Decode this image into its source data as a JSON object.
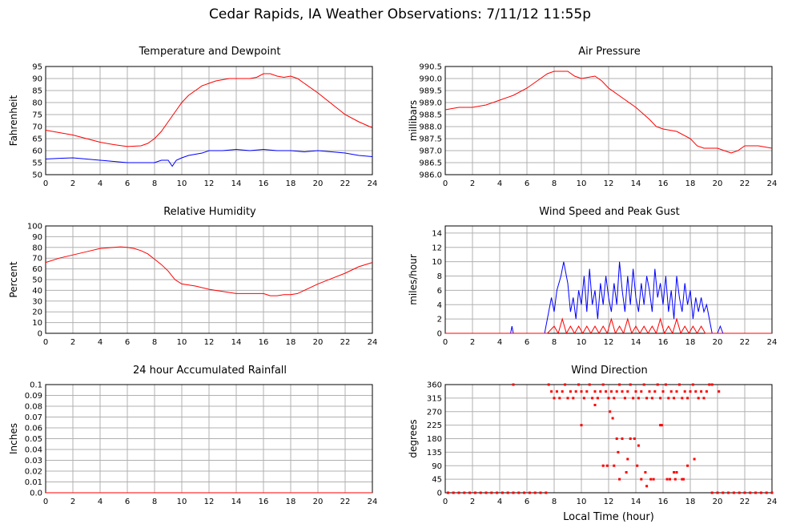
{
  "title": "Cedar Rapids, IA Weather Observations: 7/11/12 11:55p",
  "xaxis_label": "Local Time (hour)",
  "colors": {
    "red": "#ff0000",
    "blue": "#0000ff",
    "grid": "#b0b0b0"
  },
  "chart_data": [
    {
      "id": "temp",
      "type": "line",
      "title": "Temperature and Dewpoint",
      "ylabel": "Fahrenheit",
      "xlim": [
        0,
        24
      ],
      "ylim": [
        50,
        95
      ],
      "yticks": [
        50,
        55,
        60,
        65,
        70,
        75,
        80,
        85,
        90,
        95
      ],
      "xticks": [
        0,
        2,
        4,
        6,
        8,
        10,
        12,
        14,
        16,
        18,
        20,
        22,
        24
      ],
      "grid": true,
      "series": [
        {
          "color": "red",
          "x": [
            0,
            1,
            2,
            3,
            4,
            5,
            6,
            7,
            7.5,
            8,
            8.5,
            9,
            9.5,
            10,
            10.5,
            11,
            11.5,
            12,
            12.5,
            13,
            13.5,
            14,
            14.5,
            15,
            15.5,
            16,
            16.5,
            17,
            17.5,
            18,
            18.5,
            19,
            20,
            21,
            22,
            23,
            24
          ],
          "y": [
            68.5,
            67.5,
            66.5,
            65,
            63.5,
            62.5,
            61.7,
            62,
            63,
            65,
            68,
            72,
            76,
            80,
            83,
            85,
            87,
            88,
            89,
            89.5,
            90,
            90,
            90,
            90,
            90.5,
            92,
            92,
            91,
            90.5,
            91,
            90,
            88,
            84,
            79.5,
            75,
            72,
            69.5
          ]
        },
        {
          "color": "blue",
          "x": [
            0,
            1,
            2,
            3,
            4,
            5,
            6,
            7,
            8,
            8.5,
            9,
            9.3,
            9.6,
            10,
            10.5,
            11,
            11.5,
            12,
            13,
            14,
            15,
            16,
            17,
            18,
            19,
            20,
            21,
            22,
            23,
            24
          ],
          "y": [
            56.5,
            56.8,
            57,
            56.5,
            56,
            55.5,
            55,
            55,
            55,
            56,
            56,
            53.5,
            56,
            57,
            58,
            58.5,
            59,
            60,
            60,
            60.5,
            60,
            60.5,
            60,
            60,
            59.5,
            60,
            59.5,
            59,
            58,
            57.5
          ]
        }
      ]
    },
    {
      "id": "pressure",
      "type": "line",
      "title": "Air Pressure",
      "ylabel": "millibars",
      "xlim": [
        0,
        24
      ],
      "ylim": [
        986.0,
        990.5
      ],
      "yticks": [
        "986.0",
        "986.5",
        "987.0",
        "987.5",
        "988.0",
        "988.5",
        "989.0",
        "989.5",
        "990.0",
        "990.5"
      ],
      "xticks": [
        0,
        2,
        4,
        6,
        8,
        10,
        12,
        14,
        16,
        18,
        20,
        22,
        24
      ],
      "grid": true,
      "series": [
        {
          "color": "red",
          "x": [
            0,
            1,
            2,
            3,
            4,
            5,
            6,
            7,
            7.5,
            8,
            9,
            9.5,
            10,
            11,
            11.5,
            12,
            13,
            14,
            15,
            15.5,
            16,
            17,
            18,
            18.5,
            19,
            20,
            20.5,
            21,
            21.5,
            22,
            23,
            24
          ],
          "y": [
            988.7,
            988.8,
            988.8,
            988.9,
            989.1,
            989.3,
            989.6,
            990.0,
            990.2,
            990.3,
            990.3,
            990.1,
            990.0,
            990.1,
            989.9,
            989.6,
            989.2,
            988.8,
            988.3,
            988.0,
            987.9,
            987.8,
            987.5,
            987.2,
            987.1,
            987.1,
            987.0,
            986.9,
            987.0,
            987.2,
            987.2,
            987.1
          ]
        }
      ]
    },
    {
      "id": "humidity",
      "type": "line",
      "title": "Relative Humidity",
      "ylabel": "Percent",
      "xlim": [
        0,
        24
      ],
      "ylim": [
        0,
        100
      ],
      "yticks": [
        0,
        10,
        20,
        30,
        40,
        50,
        60,
        70,
        80,
        90,
        100
      ],
      "xticks": [
        0,
        2,
        4,
        6,
        8,
        10,
        12,
        14,
        16,
        18,
        20,
        22,
        24
      ],
      "grid": true,
      "series": [
        {
          "color": "red",
          "x": [
            0,
            1,
            2,
            3,
            4,
            5,
            5.5,
            6,
            6.5,
            7,
            7.5,
            8,
            8.5,
            9,
            9.5,
            10,
            11,
            12,
            13,
            14,
            15,
            16,
            16.5,
            17,
            17.5,
            18,
            18.5,
            19,
            20,
            21,
            22,
            23,
            24
          ],
          "y": [
            66,
            70,
            73,
            76,
            79,
            80,
            80.5,
            80,
            79,
            77,
            74,
            69,
            64,
            58,
            50,
            46,
            44,
            41,
            39,
            37,
            37,
            37,
            35,
            35,
            36,
            36,
            37,
            40,
            46,
            51,
            56,
            62,
            66
          ]
        }
      ]
    },
    {
      "id": "wind",
      "type": "line",
      "title": "Wind Speed and Peak Gust",
      "ylabel": "miles/hour",
      "xlim": [
        0,
        24
      ],
      "ylim": [
        0,
        15
      ],
      "yticks": [
        0,
        2,
        4,
        6,
        8,
        10,
        12,
        14
      ],
      "xticks": [
        0,
        2,
        4,
        6,
        8,
        10,
        12,
        14,
        16,
        18,
        20,
        22,
        24
      ],
      "grid": true,
      "series": [
        {
          "color": "blue",
          "x": [
            0,
            4.8,
            4.9,
            5.0,
            7.3,
            7.6,
            7.8,
            8.0,
            8.2,
            8.5,
            8.7,
            9.0,
            9.2,
            9.4,
            9.6,
            9.8,
            10.0,
            10.2,
            10.4,
            10.6,
            10.8,
            11.0,
            11.2,
            11.4,
            11.6,
            11.8,
            12.0,
            12.2,
            12.4,
            12.6,
            12.8,
            13.0,
            13.2,
            13.4,
            13.6,
            13.8,
            14.0,
            14.2,
            14.4,
            14.6,
            14.8,
            15.0,
            15.2,
            15.4,
            15.6,
            15.8,
            16.0,
            16.2,
            16.4,
            16.6,
            16.8,
            17.0,
            17.2,
            17.4,
            17.6,
            17.8,
            18.0,
            18.2,
            18.4,
            18.6,
            18.8,
            19.0,
            19.2,
            19.4,
            19.6,
            19.8,
            20.0,
            20.2,
            20.4,
            24
          ],
          "y": [
            0,
            0,
            1,
            0,
            0,
            3,
            5,
            3,
            6,
            8,
            10,
            7,
            3,
            5,
            2,
            6,
            4,
            8,
            3,
            9,
            4,
            6,
            2,
            7,
            4,
            8,
            5,
            3,
            7,
            4,
            10,
            6,
            3,
            8,
            4,
            9,
            5,
            3,
            7,
            4,
            8,
            6,
            3,
            9,
            5,
            7,
            4,
            8,
            3,
            6,
            2,
            8,
            5,
            3,
            7,
            4,
            6,
            2,
            5,
            3,
            5,
            3,
            4,
            2,
            0,
            0,
            0,
            1,
            0,
            0
          ]
        },
        {
          "color": "red",
          "x": [
            0,
            7.5,
            8.0,
            8.3,
            8.6,
            8.9,
            9.2,
            9.5,
            9.8,
            10.1,
            10.4,
            10.7,
            11.0,
            11.3,
            11.6,
            11.9,
            12.2,
            12.5,
            12.8,
            13.1,
            13.4,
            13.7,
            14.0,
            14.3,
            14.6,
            14.9,
            15.2,
            15.5,
            15.8,
            16.1,
            16.4,
            16.7,
            17.0,
            17.3,
            17.6,
            17.9,
            18.2,
            18.5,
            18.8,
            19.1,
            24
          ],
          "y": [
            0,
            0,
            1,
            0,
            2,
            0,
            1,
            0,
            1,
            0,
            1,
            0,
            1,
            0,
            1,
            0,
            2,
            0,
            1,
            0,
            2,
            0,
            1,
            0,
            1,
            0,
            1,
            0,
            2,
            0,
            1,
            0,
            2,
            0,
            1,
            0,
            1,
            0,
            1,
            0,
            0
          ]
        }
      ]
    },
    {
      "id": "rain",
      "type": "line",
      "title": "24 hour Accumulated Rainfall",
      "ylabel": "Inches",
      "xlim": [
        0,
        24
      ],
      "ylim": [
        0,
        0.1
      ],
      "yticks": [
        "0.0",
        "0.01",
        "0.02",
        "0.03",
        "0.04",
        "0.05",
        "0.06",
        "0.07",
        "0.08",
        "0.09",
        "0.1"
      ],
      "xticks": [
        0,
        2,
        4,
        6,
        8,
        10,
        12,
        14,
        16,
        18,
        20,
        22,
        24
      ],
      "grid": true,
      "series": [
        {
          "color": "red",
          "x": [
            0,
            24
          ],
          "y": [
            0,
            0
          ]
        }
      ]
    },
    {
      "id": "winddir",
      "type": "scatter",
      "title": "Wind Direction",
      "ylabel": "degrees",
      "xlabel": "Local Time (hour)",
      "xlim": [
        0,
        24
      ],
      "ylim": [
        0,
        360
      ],
      "yticks": [
        0,
        45,
        90,
        135,
        180,
        225,
        270,
        315,
        360
      ],
      "xticks": [
        0,
        2,
        4,
        6,
        8,
        10,
        12,
        14,
        16,
        18,
        20,
        22,
        24
      ],
      "grid": true,
      "series": [
        {
          "color": "red",
          "x": [
            0.2,
            0.6,
            1.0,
            1.4,
            1.8,
            2.2,
            2.6,
            3.0,
            3.4,
            3.8,
            4.2,
            4.6,
            5.0,
            5.4,
            5.8,
            6.2,
            6.6,
            7.0,
            7.4,
            5.0,
            7.6,
            7.8,
            8.0,
            8.2,
            8.4,
            8.6,
            8.8,
            9.0,
            9.2,
            9.4,
            9.6,
            9.8,
            10.0,
            10.2,
            10.4,
            10.6,
            10.8,
            11.0,
            11.2,
            11.4,
            11.6,
            11.8,
            12.0,
            12.2,
            12.4,
            12.6,
            12.8,
            13.0,
            13.2,
            13.4,
            13.6,
            13.8,
            14.0,
            14.2,
            14.4,
            14.6,
            14.8,
            15.0,
            15.2,
            15.4,
            15.6,
            15.8,
            16.0,
            16.2,
            16.4,
            16.6,
            16.8,
            17.0,
            17.2,
            17.4,
            17.6,
            17.8,
            18.0,
            18.2,
            18.4,
            18.6,
            18.8,
            19.0,
            19.2,
            19.4,
            19.6,
            20.1,
            19.6,
            20.0,
            20.4,
            20.8,
            21.2,
            21.6,
            22.0,
            22.4,
            22.8,
            23.2,
            23.6,
            24.0,
            10.0,
            12.3,
            12.6,
            13.0,
            13.4,
            14.2,
            14.4,
            14.8,
            15.3,
            15.9,
            16.3,
            16.9,
            17.4,
            17.8,
            11.0,
            12.8,
            13.3,
            14.7,
            17.0,
            11.6,
            11.9,
            12.4,
            13.6,
            13.9,
            15.8,
            16.5,
            17.5,
            12.1,
            12.7,
            14.1,
            15.1,
            16.8,
            18.3
          ],
          "y": [
            0,
            0,
            0,
            0,
            0,
            0,
            0,
            0,
            0,
            0,
            0,
            0,
            0,
            0,
            0,
            0,
            0,
            0,
            0,
            360,
            360,
            337,
            315,
            337,
            315,
            337,
            360,
            315,
            337,
            315,
            337,
            360,
            337,
            315,
            337,
            360,
            315,
            337,
            315,
            337,
            360,
            337,
            315,
            337,
            315,
            337,
            360,
            337,
            315,
            337,
            360,
            315,
            337,
            315,
            337,
            360,
            315,
            337,
            315,
            337,
            360,
            315,
            337,
            360,
            315,
            337,
            315,
            337,
            360,
            315,
            337,
            315,
            337,
            360,
            337,
            315,
            337,
            315,
            337,
            360,
            360,
            337,
            0,
            0,
            0,
            0,
            0,
            0,
            0,
            0,
            0,
            0,
            0,
            0,
            225,
            248,
            180,
            180,
            112,
            157,
            45,
            22,
            45,
            225,
            45,
            45,
            45,
            90,
            292,
            45,
            68,
            68,
            68,
            90,
            90,
            90,
            180,
            180,
            225,
            45,
            45,
            270,
            135,
            90,
            45,
            68,
            112
          ]
        }
      ]
    }
  ]
}
